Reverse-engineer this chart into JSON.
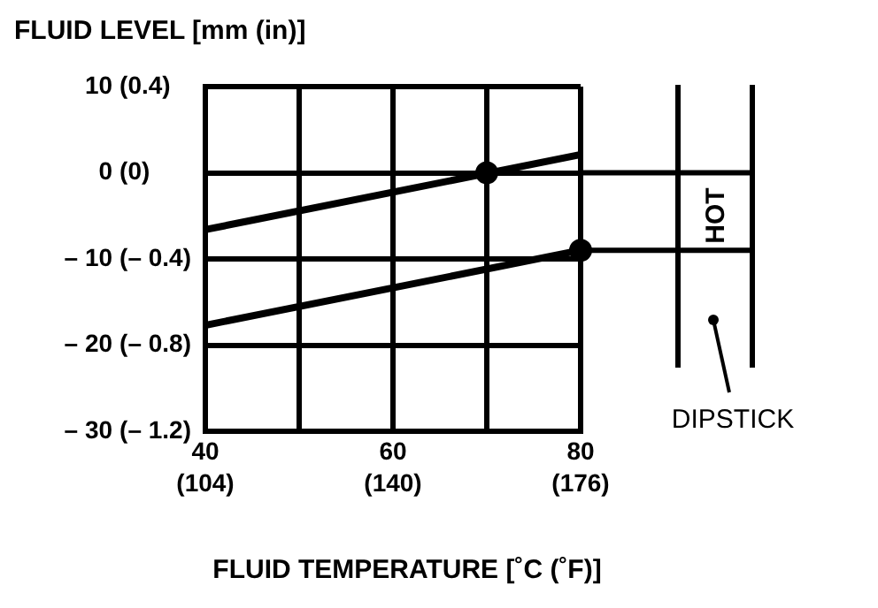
{
  "chart_data": {
    "type": "line",
    "xlabel": "FLUID TEMPERATURE [˚C (˚F)]",
    "title": "FLUID LEVEL [mm (in)]",
    "xlim": [
      40,
      80
    ],
    "xticks": [
      40,
      {
        "value": 50,
        "label": null
      },
      60,
      {
        "value": 70,
        "label": null
      },
      80
    ],
    "x2lim": [
      104,
      176
    ],
    "x2ticks": [
      {
        "value": 104,
        "label": "(104)"
      },
      {
        "value": 140,
        "label": "(140)"
      },
      {
        "value": 176,
        "label": "(176)"
      }
    ],
    "ylim": [
      -30,
      10
    ],
    "yticks": [
      {
        "value": -30,
        "label": "– 30"
      },
      {
        "value": -20,
        "label": "– 20"
      },
      {
        "value": -10,
        "label": "– 10"
      },
      0,
      10
    ],
    "y2lim": [
      -1.2,
      0.4
    ],
    "y2ticks": [
      {
        "value": -1.2,
        "label": "(– 1.2)"
      },
      {
        "value": -0.8,
        "label": "(– 0.8)"
      },
      {
        "value": -0.4,
        "label": "(– 0.4)"
      },
      {
        "value": 0,
        "label": "(0)"
      },
      {
        "value": 0.4,
        "label": "(0.4)"
      }
    ],
    "grid": true,
    "legend": false,
    "line_style": "solid",
    "series": [
      {
        "color": "#000000",
        "x": [
          40,
          80
        ],
        "values": [
          -6.6,
          2.1
        ],
        "marker": "none"
      },
      {
        "color": "#000000",
        "x": [
          40,
          80
        ],
        "values": [
          -17.7,
          -9
        ],
        "marker": "none"
      },
      {
        "type": "scatter",
        "color": "#000000",
        "x": [
          70,
          80
        ],
        "values": [
          0,
          -9
        ],
        "marker": "circle"
      }
    ],
    "annotations": [
      "HOT",
      "DIPSTICK"
    ]
  }
}
